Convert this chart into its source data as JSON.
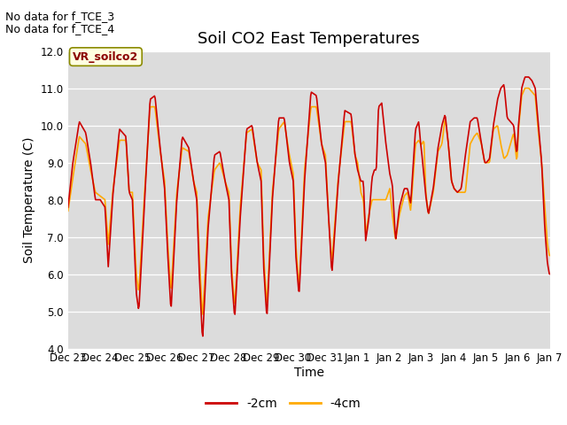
{
  "title": "Soil CO2 East Temperatures",
  "ylabel": "Soil Temperature (C)",
  "xlabel": "Time",
  "ylim": [
    4.0,
    12.0
  ],
  "yticks": [
    4.0,
    5.0,
    6.0,
    7.0,
    8.0,
    9.0,
    10.0,
    11.0,
    12.0
  ],
  "xtick_labels": [
    "Dec 23",
    "Dec 24",
    "Dec 25",
    "Dec 26",
    "Dec 27",
    "Dec 28",
    "Dec 29",
    "Dec 30",
    "Dec 31",
    "Jan 1",
    "Jan 2",
    "Jan 3",
    "Jan 4",
    "Jan 5",
    "Jan 6",
    "Jan 7"
  ],
  "legend_labels": [
    "-2cm",
    "-4cm"
  ],
  "line_colors": [
    "#cc0000",
    "#ffaa00"
  ],
  "no_data_text": [
    "No data for f_TCE_3",
    "No data for f_TCE_4"
  ],
  "annotation_text": "VR_soilco2",
  "bg_color": "#dcdcdc",
  "fig_bg_color": "#ffffff",
  "title_fontsize": 13,
  "axis_fontsize": 10,
  "tick_fontsize": 8.5,
  "legend_fontsize": 10,
  "annotation_fontsize": 9,
  "nodata_fontsize": 9
}
